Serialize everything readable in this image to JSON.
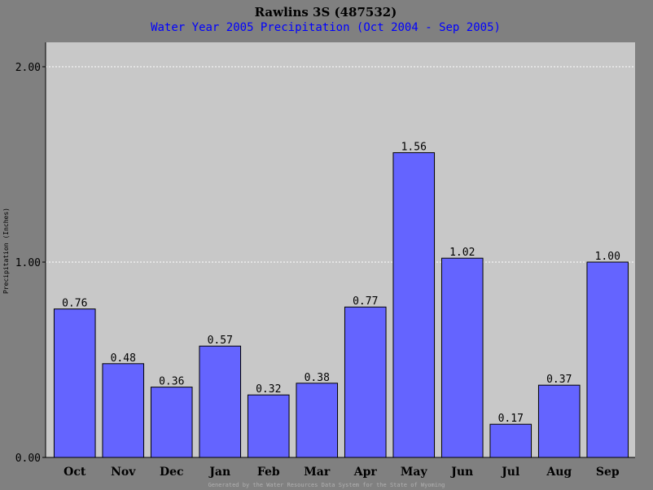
{
  "chart_data": {
    "type": "bar",
    "title": "Rawlins 3S (487532)",
    "subtitle": "Water Year 2005 Precipitation (Oct 2004 - Sep 2005)",
    "xlabel": "",
    "ylabel": "Precipitation (Inches)",
    "categories": [
      "Oct",
      "Nov",
      "Dec",
      "Jan",
      "Feb",
      "Mar",
      "Apr",
      "May",
      "Jun",
      "Jul",
      "Aug",
      "Sep"
    ],
    "values": [
      0.76,
      0.48,
      0.36,
      0.57,
      0.32,
      0.38,
      0.77,
      1.56,
      1.02,
      0.17,
      0.37,
      1.0
    ],
    "value_labels": [
      "0.76",
      "0.48",
      "0.36",
      "0.57",
      "0.32",
      "0.38",
      "0.77",
      "1.56",
      "1.02",
      "0.17",
      "0.37",
      "1.00"
    ],
    "yticks": [
      {
        "value": 0,
        "label": "0.00"
      },
      {
        "value": 1,
        "label": "1.00"
      },
      {
        "value": 2,
        "label": "2.00"
      }
    ],
    "ylim": [
      0,
      2.0
    ],
    "grid": true,
    "legend": "none",
    "colors": {
      "background": "#808080",
      "plot_area": "#c8c8c8",
      "bar_fill": "#6464ff",
      "bar_stroke": "#000000",
      "gridline": "#ffffff",
      "subtitle": "#0000ff"
    }
  },
  "footer": "Generated by the Water Resources Data System for the State of Wyoming"
}
